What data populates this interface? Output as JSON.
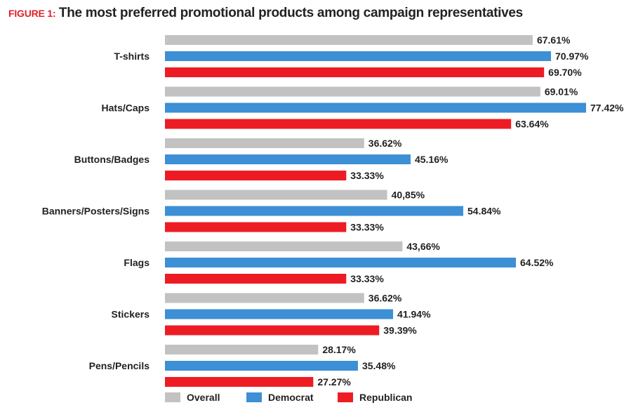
{
  "title": {
    "figure_label": "FIGURE 1:",
    "text": "The most preferred promotional products among campaign representatives"
  },
  "colors": {
    "figure_label": "#e0202b",
    "Overall": "#c2c2c2",
    "Democrat": "#3d8fd6",
    "Republican": "#ed1c24"
  },
  "chart_data": {
    "type": "bar",
    "orientation": "horizontal",
    "categories": [
      "T-shirts",
      "Hats/Caps",
      "Buttons/Badges",
      "Banners/Posters/Signs",
      "Flags",
      "Stickers",
      "Pens/Pencils"
    ],
    "series": [
      {
        "name": "Overall",
        "values": [
          67.61,
          69.01,
          36.62,
          40.85,
          43.66,
          36.62,
          28.17
        ],
        "labels": [
          "67.61%",
          "69.01%",
          "36.62%",
          "40,85%",
          "43,66%",
          "36.62%",
          "28.17%"
        ]
      },
      {
        "name": "Democrat",
        "values": [
          70.97,
          77.42,
          45.16,
          54.84,
          64.52,
          41.94,
          35.48
        ],
        "labels": [
          "70.97%",
          "77.42%",
          "45.16%",
          "54.84%",
          "64.52%",
          "41.94%",
          "35.48%"
        ]
      },
      {
        "name": "Republican",
        "values": [
          69.7,
          63.64,
          33.33,
          33.33,
          33.33,
          39.39,
          27.27
        ],
        "labels": [
          "69.70%",
          "63.64%",
          "33.33%",
          "33.33%",
          "33.33%",
          "39.39%",
          "27.27%"
        ]
      }
    ],
    "xlim": [
      0,
      100
    ],
    "grid": false,
    "legend_position": "bottom-left"
  }
}
